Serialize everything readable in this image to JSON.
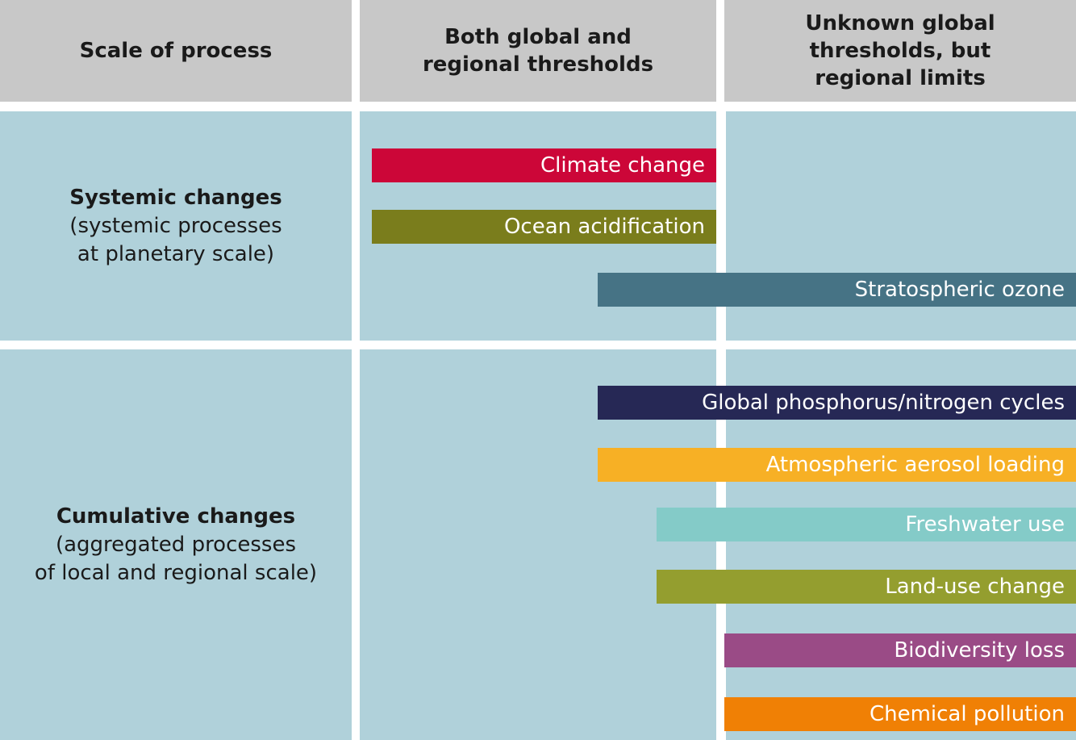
{
  "headers": {
    "col1": "Scale of process",
    "col2_line1": "Both global and",
    "col2_line2": "regional thresholds",
    "col3_line1": "Unknown global",
    "col3_line2": "thresholds, but",
    "col3_line3": "regional limits"
  },
  "rows": {
    "systemic": {
      "title": "Systemic changes",
      "sub1": "(systemic processes",
      "sub2": "at planetary scale)"
    },
    "cumulative": {
      "title": "Cumulative changes",
      "sub1": "(aggregated processes",
      "sub2": "of local and regional scale)"
    }
  },
  "bars": {
    "climate": {
      "label": "Climate change",
      "color": "#cc0638"
    },
    "ocean": {
      "label": "Ocean acidification",
      "color": "#7a7d1c"
    },
    "ozone": {
      "label": "Stratospheric ozone",
      "color": "#467385"
    },
    "phosphorus": {
      "label": "Global phosphorus/nitrogen cycles",
      "color": "#262855"
    },
    "aerosol": {
      "label": "Atmospheric aerosol loading",
      "color": "#f7b025"
    },
    "freshwater": {
      "label": "Freshwater use",
      "color": "#84cbc8"
    },
    "landuse": {
      "label": "Land-use change",
      "color": "#949e2f"
    },
    "biodiversity": {
      "label": "Biodiversity loss",
      "color": "#9a4b86"
    },
    "chemical": {
      "label": "Chemical pollution",
      "color": "#f08005"
    }
  }
}
